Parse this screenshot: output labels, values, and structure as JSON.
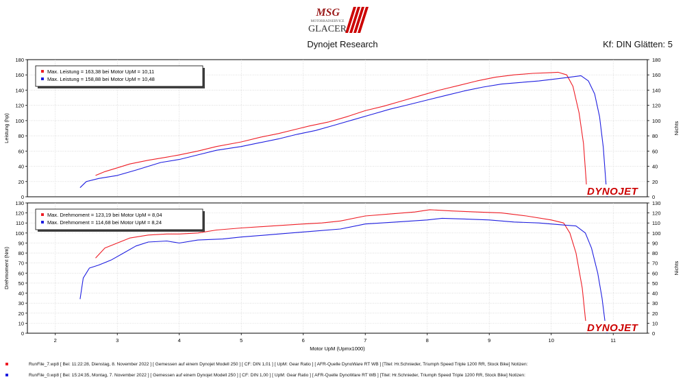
{
  "header": {
    "logo_script": "MSG",
    "logo_small": "MOTORRADSERVICE",
    "logo_main": "GLACER",
    "title": "Dynojet Research",
    "kf": "Kf: DIN Glätten: 5"
  },
  "colors": {
    "run1": "#ee1c24",
    "run2": "#1d1de0",
    "grid": "#c8c8c8",
    "axis": "#000000",
    "brand_red": "#cc0000"
  },
  "chart_data": [
    {
      "type": "line",
      "id": "leistung",
      "ylabel": "Leistung (hp)",
      "ylabel_right": "Nichts",
      "ylim": [
        0,
        180
      ],
      "yticks": [
        "0",
        "20",
        "40",
        "60",
        "80",
        "100",
        "120",
        "140",
        "160",
        "180"
      ],
      "xlim": [
        1.55,
        11.55
      ],
      "legend": [
        "Max. Leistung = 163,38 bei Motor UpM = 10,11",
        "Max. Leistung = 158,88 bei Motor UpM = 10,48"
      ],
      "legend_position": "top-left",
      "brand": "DYNOJET",
      "series": [
        {
          "x": [
            2.65,
            2.8,
            3.0,
            3.2,
            3.5,
            3.8,
            4.0,
            4.3,
            4.6,
            5.0,
            5.3,
            5.6,
            5.9,
            6.1,
            6.4,
            6.7,
            7.0,
            7.3,
            7.6,
            7.9,
            8.2,
            8.5,
            8.8,
            9.1,
            9.4,
            9.7,
            10.0,
            10.11,
            10.25,
            10.35,
            10.45,
            10.52,
            10.56,
            10.58
          ],
          "y": [
            28,
            33,
            38,
            43,
            48,
            52,
            55,
            60,
            66,
            72,
            78,
            83,
            89,
            93,
            98,
            105,
            113,
            119,
            126,
            133,
            140,
            146,
            152,
            157,
            160,
            162,
            163,
            163.4,
            160,
            145,
            110,
            70,
            25,
            0
          ]
        },
        {
          "x": [
            2.4,
            2.5,
            2.7,
            3.0,
            3.3,
            3.7,
            4.0,
            4.3,
            4.6,
            5.0,
            5.3,
            5.6,
            5.9,
            6.2,
            6.5,
            6.8,
            7.1,
            7.4,
            7.7,
            8.0,
            8.3,
            8.6,
            8.9,
            9.2,
            9.5,
            9.8,
            10.1,
            10.3,
            10.48,
            10.6,
            10.7,
            10.78,
            10.84,
            10.88,
            10.9
          ],
          "y": [
            12,
            20,
            24,
            28,
            35,
            45,
            49,
            55,
            61,
            66,
            71,
            76,
            82,
            87,
            94,
            101,
            108,
            115,
            121,
            127,
            133,
            139,
            144,
            148,
            150,
            152,
            155,
            157,
            158.9,
            152,
            135,
            105,
            65,
            20,
            0
          ]
        }
      ]
    },
    {
      "type": "line",
      "id": "drehmoment",
      "ylabel": "Drehmoment (Nm)",
      "ylabel_right": "Nichts",
      "xlabel": "Motor UpM (Upmx1000)",
      "ylim": [
        0,
        130
      ],
      "yticks": [
        "0",
        "10",
        "20",
        "30",
        "40",
        "50",
        "60",
        "70",
        "80",
        "90",
        "100",
        "110",
        "120",
        "130"
      ],
      "xlim": [
        1.55,
        11.55
      ],
      "xticks": [
        "2",
        "3",
        "4",
        "5",
        "6",
        "7",
        "8",
        "9",
        "10",
        "11"
      ],
      "legend": [
        "Max. Drehmoment = 123,19 bei Motor UpM = 8,04",
        "Max. Drehmoment = 114,68 bei Motor UpM = 8,24"
      ],
      "legend_position": "top-left",
      "brand": "DYNOJET",
      "series": [
        {
          "x": [
            2.65,
            2.8,
            3.0,
            3.2,
            3.5,
            3.8,
            4.0,
            4.3,
            4.6,
            5.0,
            5.5,
            6.0,
            6.3,
            6.6,
            7.0,
            7.4,
            7.8,
            8.04,
            8.4,
            8.8,
            9.2,
            9.6,
            10.0,
            10.2,
            10.3,
            10.4,
            10.5,
            10.55,
            10.58
          ],
          "y": [
            75,
            85,
            90,
            95,
            98,
            99,
            99,
            100,
            103,
            105,
            107,
            109,
            110,
            112,
            117,
            119,
            121,
            123.2,
            122,
            121,
            120,
            117,
            113,
            110,
            100,
            80,
            45,
            15,
            0
          ]
        },
        {
          "x": [
            2.4,
            2.45,
            2.55,
            2.7,
            2.9,
            3.1,
            3.3,
            3.5,
            3.8,
            4.0,
            4.3,
            4.7,
            5.0,
            5.4,
            5.8,
            6.2,
            6.6,
            7.0,
            7.5,
            8.0,
            8.24,
            8.6,
            9.0,
            9.4,
            9.8,
            10.2,
            10.4,
            10.55,
            10.65,
            10.75,
            10.82,
            10.87,
            10.9
          ],
          "y": [
            34,
            55,
            65,
            68,
            73,
            80,
            87,
            91,
            92,
            90,
            93,
            94,
            96,
            98,
            100,
            102,
            104,
            109,
            111,
            113,
            114.7,
            114,
            113,
            111,
            110,
            108,
            107,
            100,
            85,
            60,
            35,
            10,
            0
          ]
        }
      ]
    }
  ],
  "footer": {
    "runs": [
      "RunFile_7.wp8  [ Bei:  11:22:28, Dienstag, 8. November 2022 ]  [  Gemessen  auf  einem  Dynojet  Modell  250  ]  [  CF:  DIN  1,01  ]  [  UpM:  Gear  Ratio  ]  [  AFR-Quelle   DynoWare  RT  WB  ]  [Titel: Hr.Schnieder, Triumph Speed Triple 1200 RR, Stock Bike]   Notizen:",
      "RunFile_0.wp8  [ Bei:  15:24:35, Montag, 7. November 2022 ]  [  Gemessen  auf  einem  Dynojet  Modell  250  ]  [  CF:  DIN  1,00  ]  [  UpM:  Gear  Ratio  ]  [  AFR-Quelle   DynoWare  RT  WB  ]  [Titel: Hr.Schnieder, Triumph Speed Triple 1200 RR, Stock Bike]   Notizen:"
    ]
  }
}
